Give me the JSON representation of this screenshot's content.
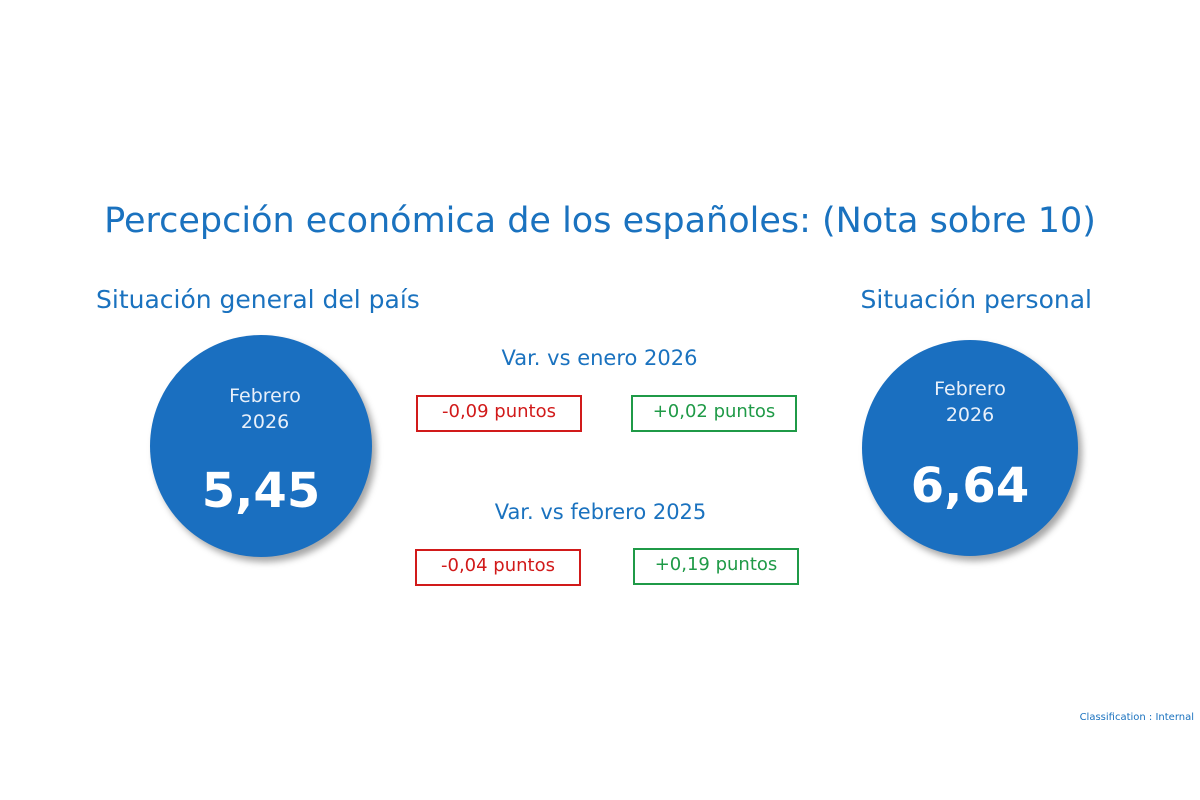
{
  "title": "Percepción económica de los españoles: (Nota sobre 10)",
  "sections": {
    "left": {
      "heading": "Situación general del país",
      "month": "Febrero",
      "year": "2026",
      "value": "5,45"
    },
    "right": {
      "heading": "Situación personal",
      "month": "Febrero",
      "year": "2026",
      "value": "6,64"
    }
  },
  "comparisons": [
    {
      "label": "Var. vs enero 2026",
      "left_change": "-0,09 puntos",
      "right_change": "+0,02 puntos"
    },
    {
      "label": "Var. vs febrero 2025",
      "left_change": "-0,04 puntos",
      "right_change": "+0,19 puntos"
    }
  ],
  "classification": "Classification : Internal",
  "colors": {
    "accent": "#1a72bf",
    "circle": "#1a6fc0",
    "negative": "#d11a1a",
    "positive": "#1f9a47"
  }
}
